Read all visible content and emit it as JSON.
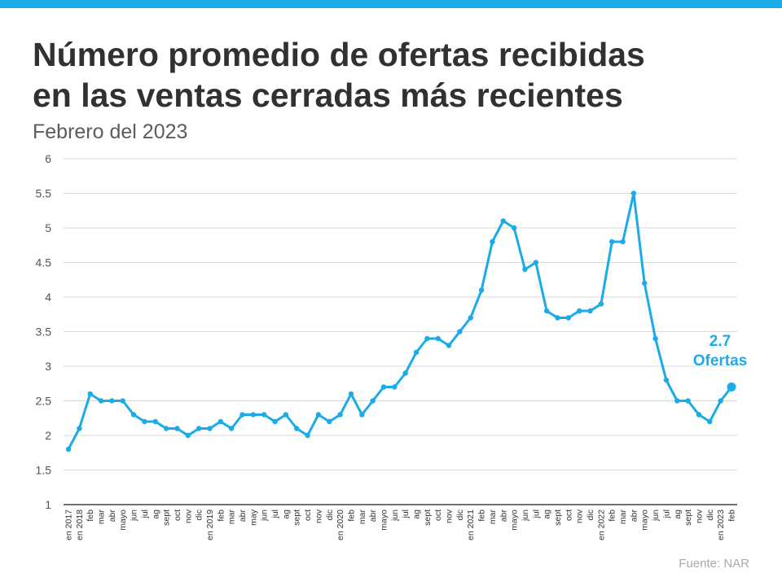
{
  "header": {
    "title_line1": "Número promedio de ofertas recibidas",
    "title_line2": "en las ventas cerradas más recientes",
    "subtitle": "Febrero del 2023"
  },
  "footer": {
    "source": "Fuente:  NAR"
  },
  "annotation": {
    "value": "2.7",
    "label": "Ofertas"
  },
  "colors": {
    "accent": "#1aabe8",
    "title": "#2f3133",
    "grid": "#d9d9d9"
  },
  "chart_data": {
    "type": "line",
    "title": "Número promedio de ofertas recibidas en las ventas cerradas más recientes",
    "subtitle": "Febrero del 2023",
    "ylim": [
      1,
      6
    ],
    "yticks": [
      "1",
      "1.5",
      "2",
      "2.5",
      "3",
      "3.5",
      "4",
      "4.5",
      "5",
      "5.5",
      "6"
    ],
    "grid": true,
    "categories": [
      "en 2017",
      "en 2018",
      "feb",
      "mar",
      "abr",
      "mayo",
      "jun",
      "jul",
      "ag",
      "sept",
      "oct",
      "nov",
      "dic",
      "en 2019",
      "feb",
      "mar",
      "abr",
      "may",
      "jun",
      "jul",
      "ag",
      "sept",
      "oct",
      "nov",
      "dic",
      "en 2020",
      "feb",
      "mar",
      "abr",
      "mayo",
      "jun",
      "jul",
      "ag",
      "sept",
      "oct",
      "nov",
      "dic",
      "en 2021",
      "feb",
      "mar",
      "abr",
      "mayo",
      "jun",
      "jul",
      "ag",
      "sept",
      "oct",
      "nov",
      "dic",
      "en 2022",
      "feb",
      "mar",
      "abr",
      "mayo",
      "jun",
      "jul",
      "ag",
      "sept",
      "nov",
      "dic",
      "en 2023",
      "feb"
    ],
    "series": [
      {
        "values": [
          1.8,
          2.1,
          2.6,
          2.5,
          2.5,
          2.5,
          2.3,
          2.2,
          2.2,
          2.1,
          2.1,
          2.0,
          2.1,
          2.1,
          2.2,
          2.1,
          2.3,
          2.3,
          2.3,
          2.2,
          2.3,
          2.1,
          2.0,
          2.3,
          2.2,
          2.3,
          2.6,
          2.3,
          2.5,
          2.7,
          2.7,
          2.9,
          3.2,
          3.4,
          3.4,
          3.3,
          3.5,
          3.7,
          4.1,
          4.8,
          5.1,
          5.0,
          4.4,
          4.5,
          3.8,
          3.7,
          3.7,
          3.8,
          3.8,
          3.9,
          4.8,
          4.8,
          5.5,
          4.2,
          3.4,
          2.8,
          2.5,
          2.5,
          2.3,
          2.2,
          2.5,
          2.7
        ]
      }
    ]
  }
}
